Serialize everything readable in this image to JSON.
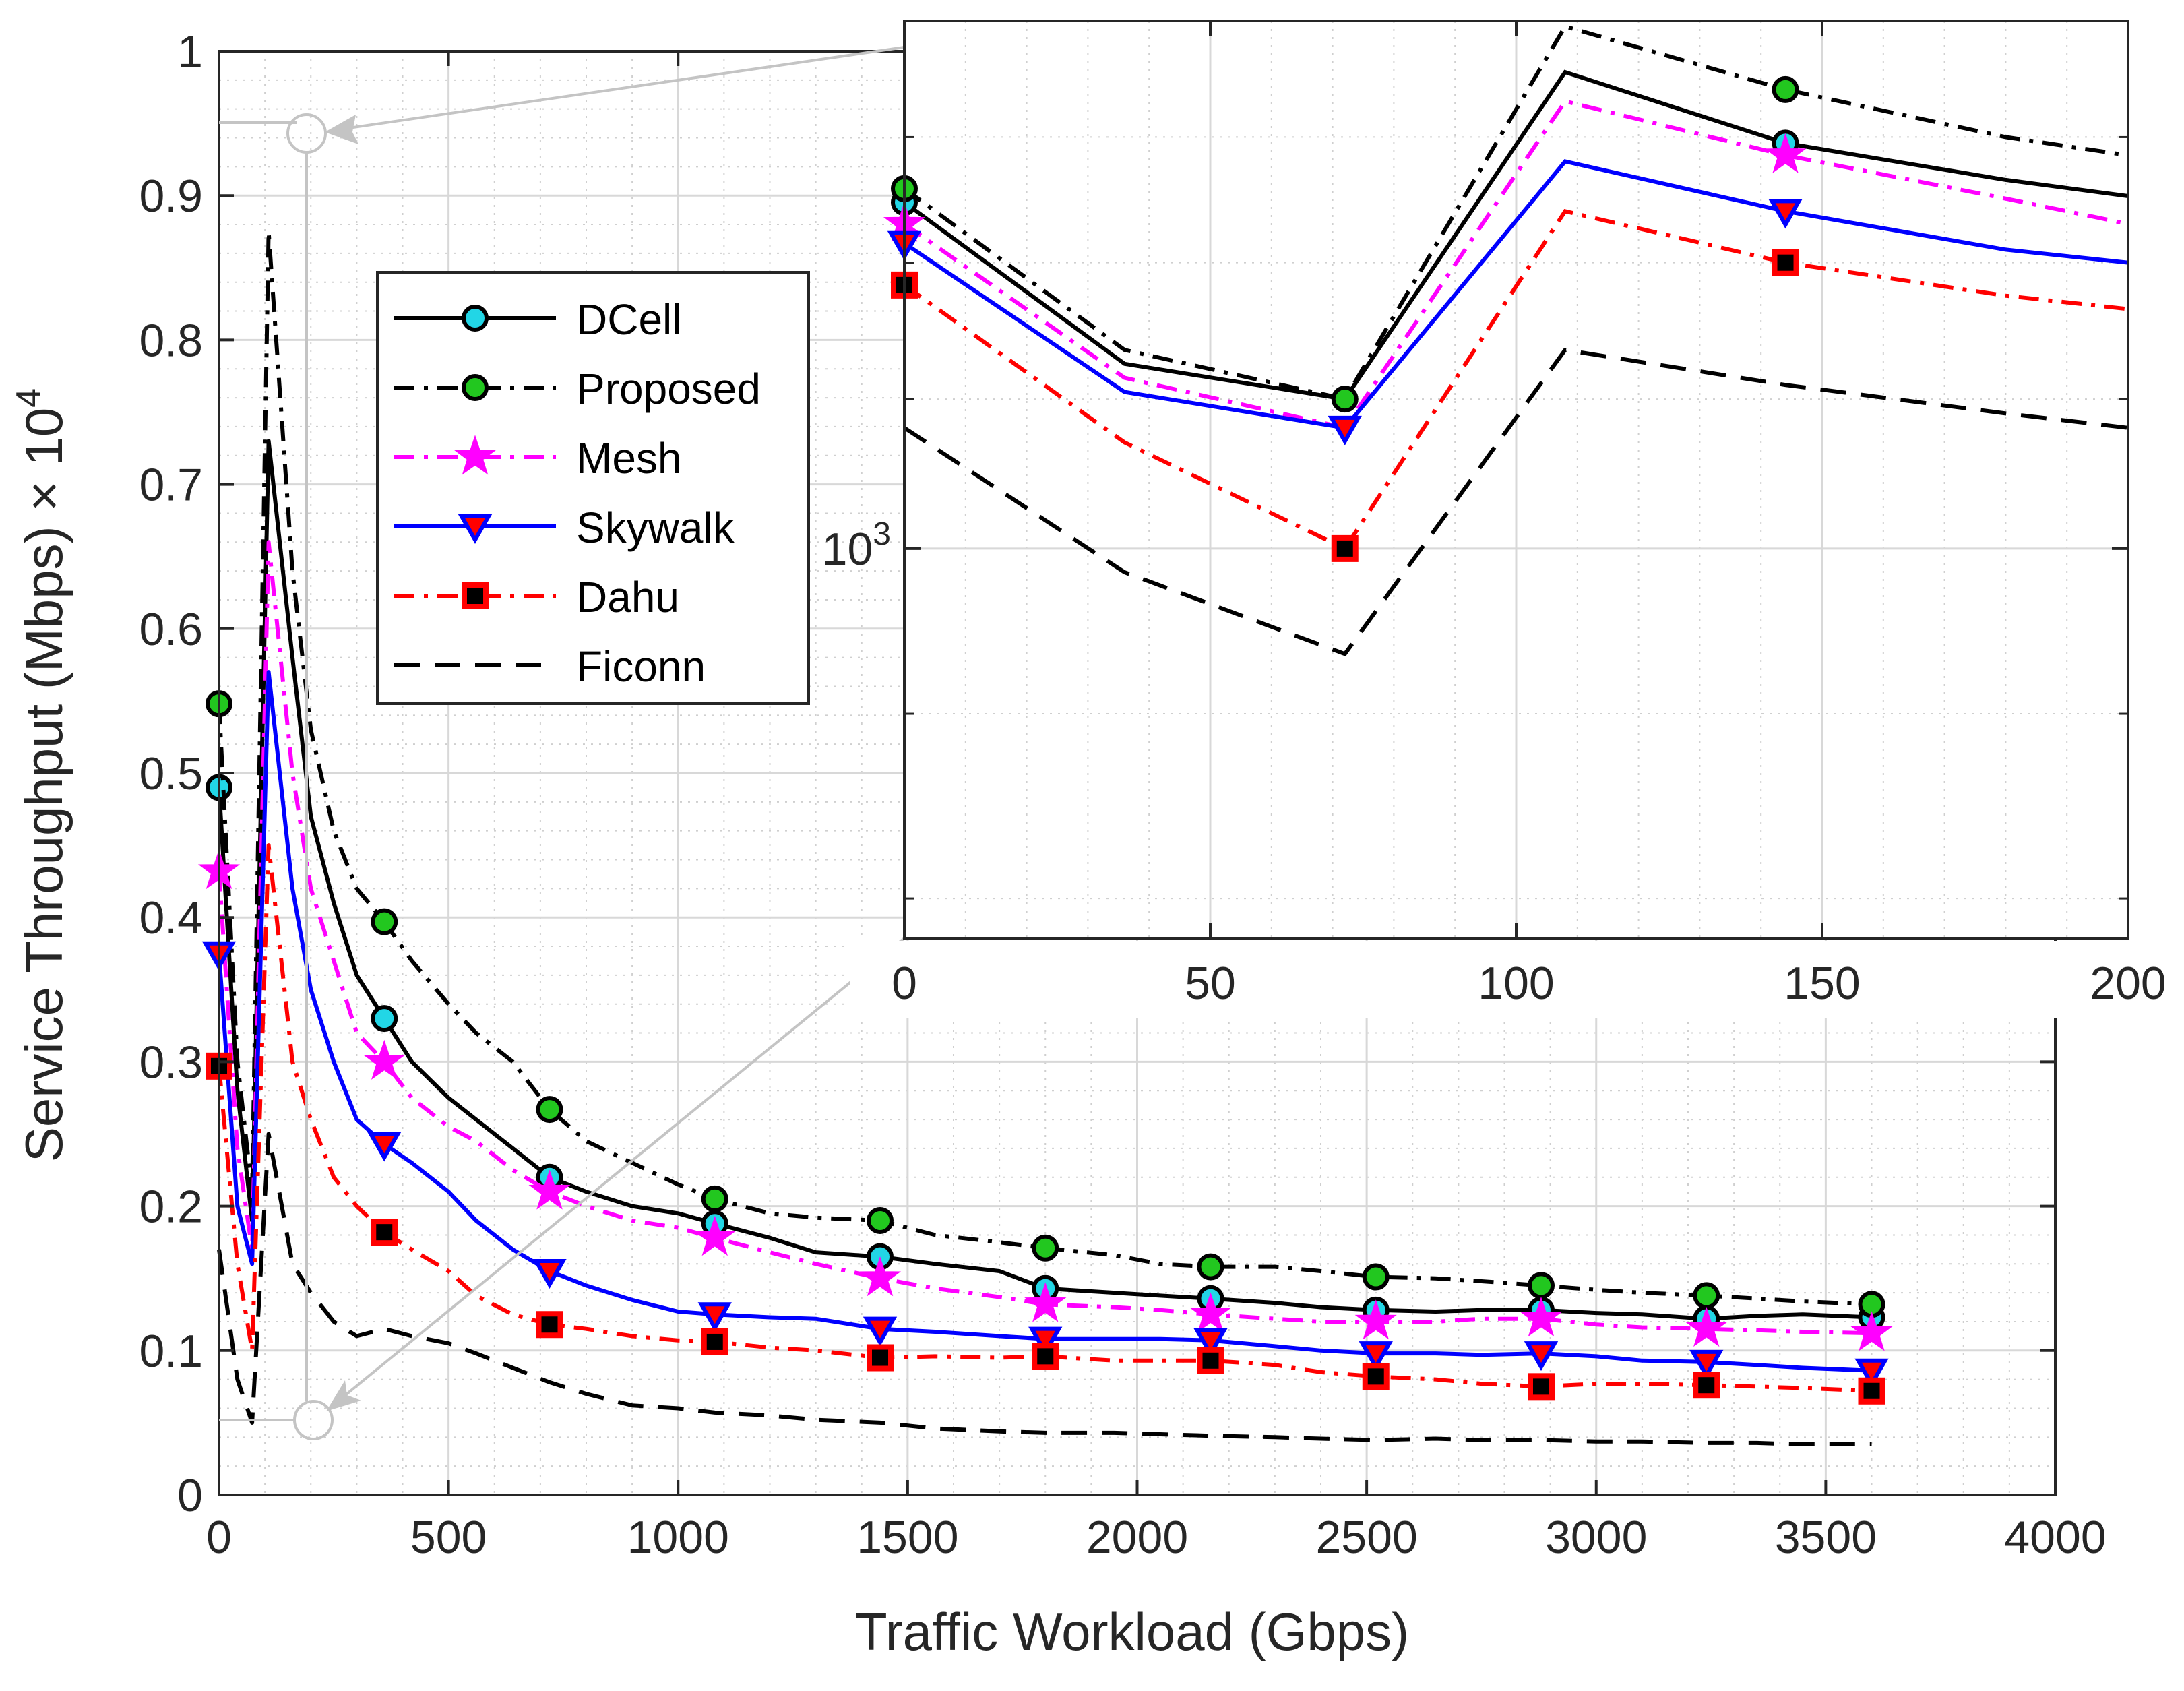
{
  "chart_data": [
    {
      "type": "line",
      "id": "main",
      "xlabel": "Traffic Workload (Gbps)",
      "ylabel_text": "Service Throughput (Mbps) × 10",
      "ylabel_exponent": "4",
      "xlim": [
        0,
        4000
      ],
      "ylim": [
        0,
        1
      ],
      "xticks": [
        0,
        500,
        1000,
        1500,
        2000,
        2500,
        3000,
        3500,
        4000
      ],
      "xtick_labels": [
        "0",
        "500",
        "1000",
        "1500",
        "2000",
        "2500",
        "3000",
        "3500",
        "4000"
      ],
      "yticks": [
        0,
        0.1,
        0.2,
        0.3,
        0.4,
        0.5,
        0.6,
        0.7,
        0.8,
        0.9,
        1
      ],
      "ytick_labels": [
        "0",
        "0.1",
        "0.2",
        "0.3",
        "0.4",
        "0.5",
        "0.6",
        "0.7",
        "0.8",
        "0.9",
        "1"
      ],
      "grid": true,
      "legend_position": "upper-left",
      "series": [
        {
          "name": "DCell",
          "color": "#000000",
          "dash": "solid",
          "marker": "circle",
          "marker_fill": "#22d6e6",
          "x": [
            0,
            40,
            72,
            108,
            160,
            200,
            250,
            300,
            360,
            420,
            500,
            560,
            640,
            720,
            800,
            900,
            1000,
            1080,
            1200,
            1300,
            1440,
            1560,
            1700,
            1800,
            1950,
            2050,
            2160,
            2300,
            2400,
            2520,
            2650,
            2750,
            2880,
            3000,
            3100,
            3240,
            3350,
            3450,
            3600
          ],
          "y": [
            0.49,
            0.28,
            0.19,
            0.73,
            0.58,
            0.47,
            0.41,
            0.36,
            0.33,
            0.3,
            0.275,
            0.26,
            0.24,
            0.22,
            0.21,
            0.2,
            0.195,
            0.188,
            0.178,
            0.168,
            0.165,
            0.16,
            0.155,
            0.143,
            0.14,
            0.138,
            0.136,
            0.133,
            0.13,
            0.128,
            0.127,
            0.128,
            0.128,
            0.126,
            0.125,
            0.122,
            0.124,
            0.125,
            0.123
          ],
          "marker_x": [
            0,
            360,
            720,
            1080,
            1440,
            1800,
            2160,
            2520,
            2880,
            3240,
            3600
          ],
          "marker_y": [
            0.49,
            0.33,
            0.22,
            0.188,
            0.165,
            0.143,
            0.136,
            0.128,
            0.128,
            0.122,
            0.123
          ]
        },
        {
          "name": "Proposed",
          "color": "#000000",
          "dash": "dashdot",
          "marker": "circle",
          "marker_fill": "#22c71f",
          "x": [
            0,
            40,
            72,
            108,
            160,
            200,
            250,
            300,
            360,
            420,
            500,
            560,
            640,
            720,
            800,
            900,
            1000,
            1080,
            1200,
            1300,
            1440,
            1560,
            1700,
            1800,
            1950,
            2050,
            2160,
            2300,
            2400,
            2520,
            2650,
            2750,
            2880,
            3000,
            3100,
            3240,
            3350,
            3450,
            3600
          ],
          "y": [
            0.548,
            0.3,
            0.21,
            0.875,
            0.64,
            0.53,
            0.46,
            0.42,
            0.397,
            0.37,
            0.34,
            0.32,
            0.3,
            0.267,
            0.245,
            0.23,
            0.215,
            0.205,
            0.195,
            0.192,
            0.19,
            0.18,
            0.175,
            0.171,
            0.166,
            0.16,
            0.158,
            0.158,
            0.155,
            0.151,
            0.15,
            0.148,
            0.145,
            0.142,
            0.14,
            0.138,
            0.136,
            0.134,
            0.132
          ],
          "marker_x": [
            0,
            360,
            720,
            1080,
            1440,
            1800,
            2160,
            2520,
            2880,
            3240,
            3600
          ],
          "marker_y": [
            0.548,
            0.397,
            0.267,
            0.205,
            0.19,
            0.171,
            0.158,
            0.151,
            0.145,
            0.138,
            0.132
          ]
        },
        {
          "name": "Mesh",
          "color": "#ff00ff",
          "dash": "dashdot",
          "marker": "star",
          "marker_fill": "#ff00ff",
          "x": [
            0,
            40,
            72,
            108,
            160,
            200,
            250,
            300,
            360,
            420,
            500,
            560,
            640,
            720,
            800,
            900,
            1000,
            1080,
            1200,
            1300,
            1440,
            1560,
            1700,
            1800,
            1950,
            2050,
            2160,
            2300,
            2400,
            2520,
            2650,
            2750,
            2880,
            3000,
            3100,
            3240,
            3350,
            3450,
            3600
          ],
          "y": [
            0.432,
            0.24,
            0.17,
            0.66,
            0.5,
            0.42,
            0.37,
            0.32,
            0.3,
            0.275,
            0.255,
            0.245,
            0.225,
            0.21,
            0.2,
            0.19,
            0.185,
            0.178,
            0.168,
            0.16,
            0.15,
            0.143,
            0.137,
            0.132,
            0.13,
            0.128,
            0.125,
            0.122,
            0.12,
            0.12,
            0.12,
            0.122,
            0.122,
            0.118,
            0.116,
            0.115,
            0.114,
            0.113,
            0.112
          ],
          "marker_x": [
            0,
            360,
            720,
            1080,
            1440,
            1800,
            2160,
            2520,
            2880,
            3240,
            3600
          ],
          "marker_y": [
            0.432,
            0.3,
            0.21,
            0.178,
            0.15,
            0.132,
            0.125,
            0.12,
            0.122,
            0.115,
            0.112
          ]
        },
        {
          "name": "Skywalk",
          "color": "#0000ff",
          "dash": "solid",
          "marker": "triangle-down",
          "marker_fill": "#ff0000",
          "x": [
            0,
            40,
            72,
            108,
            160,
            200,
            250,
            300,
            360,
            420,
            500,
            560,
            640,
            720,
            800,
            900,
            1000,
            1080,
            1200,
            1300,
            1440,
            1560,
            1700,
            1800,
            1950,
            2050,
            2160,
            2300,
            2400,
            2520,
            2650,
            2750,
            2880,
            3000,
            3100,
            3240,
            3350,
            3450,
            3600
          ],
          "y": [
            0.375,
            0.2,
            0.16,
            0.57,
            0.42,
            0.35,
            0.3,
            0.26,
            0.243,
            0.23,
            0.21,
            0.19,
            0.17,
            0.155,
            0.145,
            0.135,
            0.127,
            0.125,
            0.123,
            0.122,
            0.115,
            0.113,
            0.11,
            0.108,
            0.108,
            0.108,
            0.107,
            0.103,
            0.1,
            0.098,
            0.098,
            0.097,
            0.098,
            0.096,
            0.093,
            0.092,
            0.09,
            0.088,
            0.086
          ],
          "marker_x": [
            0,
            360,
            720,
            1080,
            1440,
            1800,
            2160,
            2520,
            2880,
            3240,
            3600
          ],
          "marker_y": [
            0.375,
            0.243,
            0.155,
            0.125,
            0.115,
            0.108,
            0.107,
            0.098,
            0.098,
            0.092,
            0.086
          ]
        },
        {
          "name": "Dahu",
          "color": "#ff0000",
          "dash": "dashdot",
          "marker": "square",
          "marker_fill": "#000000",
          "x": [
            0,
            40,
            72,
            108,
            160,
            200,
            250,
            300,
            360,
            420,
            500,
            560,
            640,
            720,
            800,
            900,
            1000,
            1080,
            1200,
            1300,
            1440,
            1560,
            1700,
            1800,
            1950,
            2050,
            2160,
            2300,
            2400,
            2520,
            2650,
            2750,
            2880,
            3000,
            3100,
            3240,
            3350,
            3450,
            3600
          ],
          "y": [
            0.297,
            0.16,
            0.1,
            0.45,
            0.3,
            0.26,
            0.22,
            0.2,
            0.182,
            0.17,
            0.155,
            0.138,
            0.125,
            0.118,
            0.115,
            0.11,
            0.107,
            0.106,
            0.102,
            0.1,
            0.095,
            0.096,
            0.095,
            0.096,
            0.093,
            0.093,
            0.093,
            0.09,
            0.085,
            0.082,
            0.08,
            0.077,
            0.075,
            0.077,
            0.077,
            0.076,
            0.075,
            0.074,
            0.072
          ],
          "marker_x": [
            0,
            360,
            720,
            1080,
            1440,
            1800,
            2160,
            2520,
            2880,
            3240,
            3600
          ],
          "marker_y": [
            0.297,
            0.182,
            0.118,
            0.106,
            0.095,
            0.096,
            0.093,
            0.082,
            0.075,
            0.076,
            0.072
          ]
        },
        {
          "name": "Ficonn",
          "color": "#000000",
          "dash": "dashed",
          "marker": "none",
          "marker_fill": "",
          "x": [
            0,
            40,
            72,
            108,
            160,
            200,
            250,
            300,
            360,
            420,
            500,
            560,
            640,
            720,
            800,
            900,
            1000,
            1080,
            1200,
            1300,
            1440,
            1560,
            1700,
            1800,
            1950,
            2050,
            2160,
            2300,
            2400,
            2520,
            2650,
            2750,
            2880,
            3000,
            3100,
            3240,
            3350,
            3450,
            3600
          ],
          "y": [
            0.17,
            0.08,
            0.05,
            0.25,
            0.16,
            0.14,
            0.12,
            0.11,
            0.115,
            0.11,
            0.105,
            0.098,
            0.088,
            0.078,
            0.07,
            0.062,
            0.06,
            0.057,
            0.055,
            0.052,
            0.05,
            0.046,
            0.044,
            0.043,
            0.043,
            0.042,
            0.041,
            0.04,
            0.039,
            0.038,
            0.039,
            0.038,
            0.038,
            0.037,
            0.037,
            0.036,
            0.036,
            0.035,
            0.035
          ]
        }
      ]
    },
    {
      "type": "line",
      "id": "inset",
      "yscale": "log",
      "xlim": [
        0,
        200
      ],
      "ylim": [
        780,
        1400
      ],
      "xticks": [
        0,
        50,
        100,
        150,
        200
      ],
      "xtick_labels": [
        "0",
        "50",
        "100",
        "150",
        "200"
      ],
      "ytick_label_base": "10",
      "ytick_label_exponent": "3",
      "ytick_value": 1000,
      "grid": true,
      "series": [
        {
          "name": "DCell",
          "x": [
            0,
            36,
            72,
            108,
            144,
            180,
            200
          ],
          "y": [
            1247,
            1125,
            1100,
            1355,
            1295,
            1265,
            1252
          ],
          "marker_x": [
            0,
            144
          ],
          "marker_y": [
            1247,
            1295
          ]
        },
        {
          "name": "Proposed",
          "x": [
            0,
            36,
            72,
            108,
            144,
            180,
            200
          ],
          "y": [
            1258,
            1135,
            1100,
            1395,
            1340,
            1300,
            1285
          ],
          "marker_x": [
            0,
            72,
            144
          ],
          "marker_y": [
            1258,
            1100,
            1340
          ]
        },
        {
          "name": "Mesh",
          "x": [
            0,
            36,
            72,
            108,
            144,
            180,
            200
          ],
          "y": [
            1230,
            1115,
            1080,
            1330,
            1285,
            1250,
            1230
          ],
          "marker_x": [
            0,
            144
          ],
          "marker_y": [
            1230,
            1285
          ]
        },
        {
          "name": "Skywalk",
          "x": [
            0,
            36,
            72,
            108,
            144,
            180,
            200
          ],
          "y": [
            1215,
            1105,
            1080,
            1280,
            1240,
            1210,
            1200
          ],
          "marker_x": [
            0,
            72,
            144
          ],
          "marker_y": [
            1215,
            1080,
            1240
          ]
        },
        {
          "name": "Dahu",
          "x": [
            0,
            36,
            72,
            108,
            144,
            180,
            200
          ],
          "y": [
            1183,
            1070,
            1000,
            1240,
            1200,
            1175,
            1165
          ],
          "marker_x": [
            0,
            72,
            144
          ],
          "marker_y": [
            1183,
            1000,
            1200
          ]
        },
        {
          "name": "Ficonn",
          "x": [
            0,
            36,
            72,
            108,
            144,
            180,
            200
          ],
          "y": [
            1080,
            985,
            935,
            1135,
            1110,
            1090,
            1080
          ]
        }
      ]
    }
  ]
}
